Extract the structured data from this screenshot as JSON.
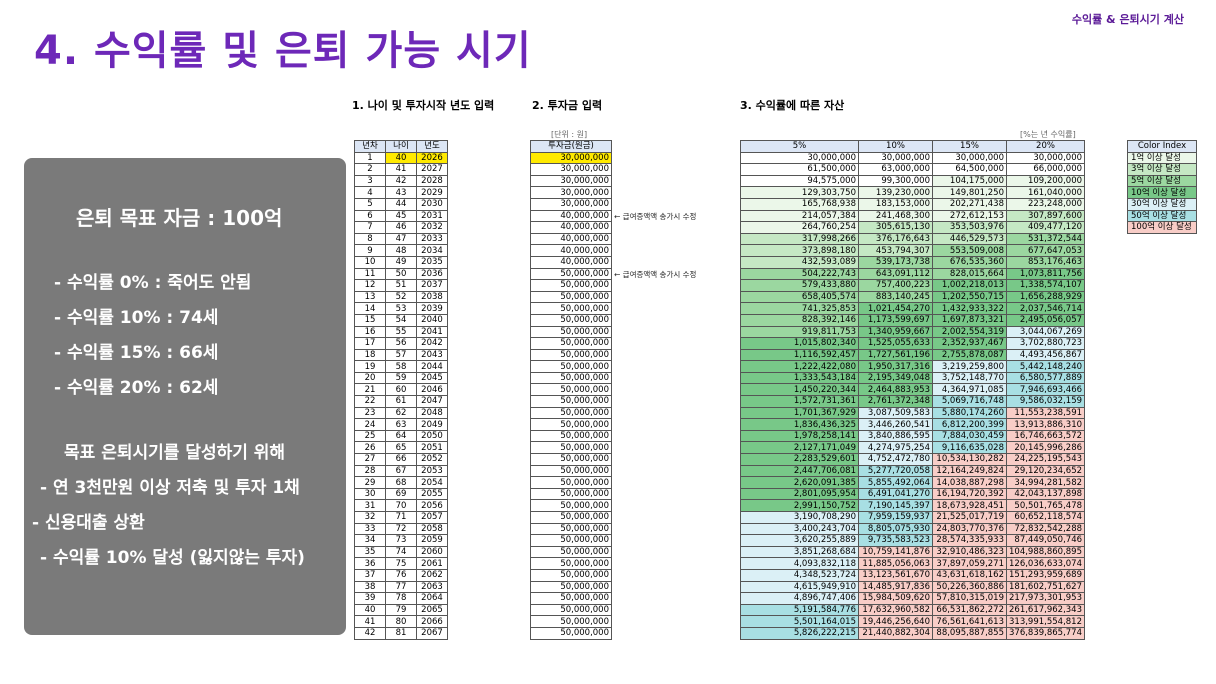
{
  "header": {
    "corner_label": "수익률 & 은퇴시기 계산",
    "title": "4. 수익률 및 은퇴 가능 시기"
  },
  "sections": {
    "s1": "1. 나이 및 투자시작 년도 입력",
    "s2": "2. 투자금 입력",
    "s3": "3. 수익률에 따른 자산"
  },
  "summary": {
    "goal": "은퇴 목표 자금 : 100억",
    "r0": "- 수익률  0% : 죽어도 안됨",
    "r10": "- 수익률 10% : 74세",
    "r15": "- 수익률 15% : 66세",
    "r20": "- 수익률 20% : 62세",
    "howto": "목표 은퇴시기를 달성하기 위해",
    "tip1": "- 연 3천만원 이상 저축 및 투자 1채",
    "tip2": "- 신용대출 상환",
    "tip3": "- 수익률 10% 달성 (잃지않는 투자)"
  },
  "units": {
    "invest": "[단위 : 원]",
    "rate": "[%는 년 수익률]"
  },
  "age_table": {
    "headers": [
      "년차",
      "나이",
      "년도"
    ]
  },
  "invest_table": {
    "header": "투자금(원금)"
  },
  "notes": {
    "n1": "← 급여증액액 송가시 수정",
    "n2": "← 급여증액액 송가시 수정"
  },
  "asset_table": {
    "headers": [
      "5%",
      "10%",
      "15%",
      "20%"
    ]
  },
  "legend": {
    "header": "Color Index",
    "items": [
      "1억 이상 달성",
      "3억 이상 달성",
      "5억 이상 달성",
      "10억 이상 달성",
      "30억 이상 달성",
      "50억 이상 달성",
      "100억 이상 달성"
    ]
  },
  "colors": {
    "c1": "#ebf7e9",
    "c3": "#c5e8c4",
    "c5": "#9bd7a0",
    "c10": "#78c888",
    "c30": "#dbf0f6",
    "c50": "#a8dfe3",
    "c100": "#f8cdc7",
    "highlight": "#ffea00"
  },
  "rows": [
    {
      "y": "1",
      "age": "40",
      "year": "2026",
      "inv": "30,000,000",
      "a": [
        "30,000,000",
        "30,000,000",
        "30,000,000",
        "30,000,000"
      ]
    },
    {
      "y": "2",
      "age": "41",
      "year": "2027",
      "inv": "30,000,000",
      "a": [
        "61,500,000",
        "63,000,000",
        "64,500,000",
        "66,000,000"
      ]
    },
    {
      "y": "3",
      "age": "42",
      "year": "2028",
      "inv": "30,000,000",
      "a": [
        "94,575,000",
        "99,300,000",
        "104,175,000",
        "109,200,000"
      ]
    },
    {
      "y": "4",
      "age": "43",
      "year": "2029",
      "inv": "30,000,000",
      "a": [
        "129,303,750",
        "139,230,000",
        "149,801,250",
        "161,040,000"
      ]
    },
    {
      "y": "5",
      "age": "44",
      "year": "2030",
      "inv": "30,000,000",
      "a": [
        "165,768,938",
        "183,153,000",
        "202,271,438",
        "223,248,000"
      ]
    },
    {
      "y": "6",
      "age": "45",
      "year": "2031",
      "inv": "40,000,000",
      "a": [
        "214,057,384",
        "241,468,300",
        "272,612,153",
        "307,897,600"
      ]
    },
    {
      "y": "7",
      "age": "46",
      "year": "2032",
      "inv": "40,000,000",
      "a": [
        "264,760,254",
        "305,615,130",
        "353,503,976",
        "409,477,120"
      ]
    },
    {
      "y": "8",
      "age": "47",
      "year": "2033",
      "inv": "40,000,000",
      "a": [
        "317,998,266",
        "376,176,643",
        "446,529,573",
        "531,372,544"
      ]
    },
    {
      "y": "9",
      "age": "48",
      "year": "2034",
      "inv": "40,000,000",
      "a": [
        "373,898,180",
        "453,794,307",
        "553,509,008",
        "677,647,053"
      ]
    },
    {
      "y": "10",
      "age": "49",
      "year": "2035",
      "inv": "40,000,000",
      "a": [
        "432,593,089",
        "539,173,738",
        "676,535,360",
        "853,176,463"
      ]
    },
    {
      "y": "11",
      "age": "50",
      "year": "2036",
      "inv": "50,000,000",
      "a": [
        "504,222,743",
        "643,091,112",
        "828,015,664",
        "1,073,811,756"
      ]
    },
    {
      "y": "12",
      "age": "51",
      "year": "2037",
      "inv": "50,000,000",
      "a": [
        "579,433,880",
        "757,400,223",
        "1,002,218,013",
        "1,338,574,107"
      ]
    },
    {
      "y": "13",
      "age": "52",
      "year": "2038",
      "inv": "50,000,000",
      "a": [
        "658,405,574",
        "883,140,245",
        "1,202,550,715",
        "1,656,288,929"
      ]
    },
    {
      "y": "14",
      "age": "53",
      "year": "2039",
      "inv": "50,000,000",
      "a": [
        "741,325,853",
        "1,021,454,270",
        "1,432,933,322",
        "2,037,546,714"
      ]
    },
    {
      "y": "15",
      "age": "54",
      "year": "2040",
      "inv": "50,000,000",
      "a": [
        "828,392,146",
        "1,173,599,697",
        "1,697,873,321",
        "2,495,056,057"
      ]
    },
    {
      "y": "16",
      "age": "55",
      "year": "2041",
      "inv": "50,000,000",
      "a": [
        "919,811,753",
        "1,340,959,667",
        "2,002,554,319",
        "3,044,067,269"
      ]
    },
    {
      "y": "17",
      "age": "56",
      "year": "2042",
      "inv": "50,000,000",
      "a": [
        "1,015,802,340",
        "1,525,055,633",
        "2,352,937,467",
        "3,702,880,723"
      ]
    },
    {
      "y": "18",
      "age": "57",
      "year": "2043",
      "inv": "50,000,000",
      "a": [
        "1,116,592,457",
        "1,727,561,196",
        "2,755,878,087",
        "4,493,456,867"
      ]
    },
    {
      "y": "19",
      "age": "58",
      "year": "2044",
      "inv": "50,000,000",
      "a": [
        "1,222,422,080",
        "1,950,317,316",
        "3,219,259,800",
        "5,442,148,240"
      ]
    },
    {
      "y": "20",
      "age": "59",
      "year": "2045",
      "inv": "50,000,000",
      "a": [
        "1,333,543,184",
        "2,195,349,048",
        "3,752,148,770",
        "6,580,577,889"
      ]
    },
    {
      "y": "21",
      "age": "60",
      "year": "2046",
      "inv": "50,000,000",
      "a": [
        "1,450,220,344",
        "2,464,883,953",
        "4,364,971,085",
        "7,946,693,466"
      ]
    },
    {
      "y": "22",
      "age": "61",
      "year": "2047",
      "inv": "50,000,000",
      "a": [
        "1,572,731,361",
        "2,761,372,348",
        "5,069,716,748",
        "9,586,032,159"
      ]
    },
    {
      "y": "23",
      "age": "62",
      "year": "2048",
      "inv": "50,000,000",
      "a": [
        "1,701,367,929",
        "3,087,509,583",
        "5,880,174,260",
        "11,553,238,591"
      ]
    },
    {
      "y": "24",
      "age": "63",
      "year": "2049",
      "inv": "50,000,000",
      "a": [
        "1,836,436,325",
        "3,446,260,541",
        "6,812,200,399",
        "13,913,886,310"
      ]
    },
    {
      "y": "25",
      "age": "64",
      "year": "2050",
      "inv": "50,000,000",
      "a": [
        "1,978,258,141",
        "3,840,886,595",
        "7,884,030,459",
        "16,746,663,572"
      ]
    },
    {
      "y": "26",
      "age": "65",
      "year": "2051",
      "inv": "50,000,000",
      "a": [
        "2,127,171,049",
        "4,274,975,254",
        "9,116,635,028",
        "20,145,996,286"
      ]
    },
    {
      "y": "27",
      "age": "66",
      "year": "2052",
      "inv": "50,000,000",
      "a": [
        "2,283,529,601",
        "4,752,472,780",
        "10,534,130,282",
        "24,225,195,543"
      ]
    },
    {
      "y": "28",
      "age": "67",
      "year": "2053",
      "inv": "50,000,000",
      "a": [
        "2,447,706,081",
        "5,277,720,058",
        "12,164,249,824",
        "29,120,234,652"
      ]
    },
    {
      "y": "29",
      "age": "68",
      "year": "2054",
      "inv": "50,000,000",
      "a": [
        "2,620,091,385",
        "5,855,492,064",
        "14,038,887,298",
        "34,994,281,582"
      ]
    },
    {
      "y": "30",
      "age": "69",
      "year": "2055",
      "inv": "50,000,000",
      "a": [
        "2,801,095,954",
        "6,491,041,270",
        "16,194,720,392",
        "42,043,137,898"
      ]
    },
    {
      "y": "31",
      "age": "70",
      "year": "2056",
      "inv": "50,000,000",
      "a": [
        "2,991,150,752",
        "7,190,145,397",
        "18,673,928,451",
        "50,501,765,478"
      ]
    },
    {
      "y": "32",
      "age": "71",
      "year": "2057",
      "inv": "50,000,000",
      "a": [
        "3,190,708,290",
        "7,959,159,937",
        "21,525,017,719",
        "60,652,118,574"
      ]
    },
    {
      "y": "33",
      "age": "72",
      "year": "2058",
      "inv": "50,000,000",
      "a": [
        "3,400,243,704",
        "8,805,075,930",
        "24,803,770,376",
        "72,832,542,288"
      ]
    },
    {
      "y": "34",
      "age": "73",
      "year": "2059",
      "inv": "50,000,000",
      "a": [
        "3,620,255,889",
        "9,735,583,523",
        "28,574,335,933",
        "87,449,050,746"
      ]
    },
    {
      "y": "35",
      "age": "74",
      "year": "2060",
      "inv": "50,000,000",
      "a": [
        "3,851,268,684",
        "10,759,141,876",
        "32,910,486,323",
        "104,988,860,895"
      ]
    },
    {
      "y": "36",
      "age": "75",
      "year": "2061",
      "inv": "50,000,000",
      "a": [
        "4,093,832,118",
        "11,885,056,063",
        "37,897,059,271",
        "126,036,633,074"
      ]
    },
    {
      "y": "37",
      "age": "76",
      "year": "2062",
      "inv": "50,000,000",
      "a": [
        "4,348,523,724",
        "13,123,561,670",
        "43,631,618,162",
        "151,293,959,689"
      ]
    },
    {
      "y": "38",
      "age": "77",
      "year": "2063",
      "inv": "50,000,000",
      "a": [
        "4,615,949,910",
        "14,485,917,836",
        "50,226,360,886",
        "181,602,751,627"
      ]
    },
    {
      "y": "39",
      "age": "78",
      "year": "2064",
      "inv": "50,000,000",
      "a": [
        "4,896,747,406",
        "15,984,509,620",
        "57,810,315,019",
        "217,973,301,953"
      ]
    },
    {
      "y": "40",
      "age": "79",
      "year": "2065",
      "inv": "50,000,000",
      "a": [
        "5,191,584,776",
        "17,632,960,582",
        "66,531,862,272",
        "261,617,962,343"
      ]
    },
    {
      "y": "41",
      "age": "80",
      "year": "2066",
      "inv": "50,000,000",
      "a": [
        "5,501,164,015",
        "19,446,256,640",
        "76,561,641,613",
        "313,991,554,812"
      ]
    },
    {
      "y": "42",
      "age": "81",
      "year": "2067",
      "inv": "50,000,000",
      "a": [
        "5,826,222,215",
        "21,440,882,304",
        "88,095,887,855",
        "376,839,865,774"
      ]
    }
  ]
}
